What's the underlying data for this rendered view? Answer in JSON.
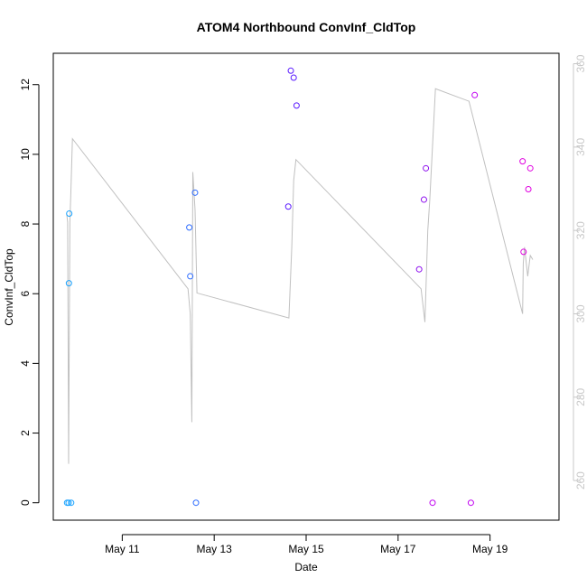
{
  "chart_data": {
    "type": "scatter",
    "title": "ATOM4 Northbound ConvInf_CldTop",
    "xlabel": "Date",
    "ylabel": "ConvInf_CldTop",
    "xlim": [
      "2024-05-09T12:00",
      "2024-05-20T12:00"
    ],
    "ylim": [
      -0.5,
      12.9
    ],
    "y_right_lim": [
      250.5,
      362.5
    ],
    "x_ticks": [
      {
        "date": "2024-05-11",
        "label": "May 11"
      },
      {
        "date": "2024-05-13",
        "label": "May 13"
      },
      {
        "date": "2024-05-15",
        "label": "May 15"
      },
      {
        "date": "2024-05-17",
        "label": "May 17"
      },
      {
        "date": "2024-05-19",
        "label": "May 19"
      }
    ],
    "y_ticks": [
      0,
      2,
      4,
      6,
      8,
      10,
      12
    ],
    "y_right_ticks": [
      260,
      280,
      300,
      320,
      340,
      360
    ],
    "grid": false,
    "series": [
      {
        "kind": "points",
        "points": [
          {
            "x": "2024-05-09T19:12",
            "y": 0.0,
            "color": "#1aa3ff"
          },
          {
            "x": "2024-05-09T20:00",
            "y": 0.0,
            "color": "#1aa3ff"
          },
          {
            "x": "2024-05-09T20:10",
            "y": 6.3,
            "color": "#1aa3ff"
          },
          {
            "x": "2024-05-09T20:20",
            "y": 8.3,
            "color": "#1aa3ff"
          },
          {
            "x": "2024-05-09T21:20",
            "y": 0.0,
            "color": "#1aa3ff"
          },
          {
            "x": "2024-05-12T11:00",
            "y": 7.9,
            "color": "#2a6aff"
          },
          {
            "x": "2024-05-12T11:30",
            "y": 6.5,
            "color": "#2a6aff"
          },
          {
            "x": "2024-05-12T14:00",
            "y": 8.9,
            "color": "#2a6aff"
          },
          {
            "x": "2024-05-12T14:30",
            "y": 0.0,
            "color": "#2a6aff"
          },
          {
            "x": "2024-05-14T14:40",
            "y": 8.5,
            "color": "#5a1aff"
          },
          {
            "x": "2024-05-14T16:00",
            "y": 12.4,
            "color": "#5a1aff"
          },
          {
            "x": "2024-05-14T17:30",
            "y": 12.2,
            "color": "#5a1aff"
          },
          {
            "x": "2024-05-14T19:00",
            "y": 11.4,
            "color": "#5a1aff"
          },
          {
            "x": "2024-05-17T11:00",
            "y": 6.7,
            "color": "#8e10ee"
          },
          {
            "x": "2024-05-17T13:30",
            "y": 8.7,
            "color": "#8e10ee"
          },
          {
            "x": "2024-05-17T14:30",
            "y": 9.6,
            "color": "#8e10ee"
          },
          {
            "x": "2024-05-17T18:00",
            "y": 0.0,
            "color": "#c000f0"
          },
          {
            "x": "2024-05-18T14:00",
            "y": 0.0,
            "color": "#c000f0"
          },
          {
            "x": "2024-05-18T16:00",
            "y": 11.7,
            "color": "#c000f0"
          },
          {
            "x": "2024-05-19T17:00",
            "y": 9.8,
            "color": "#e000e0"
          },
          {
            "x": "2024-05-19T17:30",
            "y": 7.2,
            "color": "#e000e0"
          },
          {
            "x": "2024-05-19T20:00",
            "y": 9.0,
            "color": "#e000e0"
          },
          {
            "x": "2024-05-19T21:00",
            "y": 9.6,
            "color": "#e000e0"
          }
        ]
      },
      {
        "kind": "line",
        "axis": "right",
        "color": "#c0c0c0",
        "points": [
          {
            "x": "2024-05-09T19:00",
            "y": 324
          },
          {
            "x": "2024-05-09T19:30",
            "y": 322
          },
          {
            "x": "2024-05-09T20:00",
            "y": 264
          },
          {
            "x": "2024-05-09T20:40",
            "y": 322
          },
          {
            "x": "2024-05-09T21:10",
            "y": 329
          },
          {
            "x": "2024-05-09T22:00",
            "y": 342
          },
          {
            "x": "2024-05-12T10:20",
            "y": 306
          },
          {
            "x": "2024-05-12T11:30",
            "y": 300
          },
          {
            "x": "2024-05-12T12:20",
            "y": 274
          },
          {
            "x": "2024-05-12T12:50",
            "y": 334
          },
          {
            "x": "2024-05-12T14:00",
            "y": 325
          },
          {
            "x": "2024-05-12T15:00",
            "y": 305
          },
          {
            "x": "2024-05-14T15:00",
            "y": 299
          },
          {
            "x": "2024-05-14T16:30",
            "y": 316
          },
          {
            "x": "2024-05-14T17:30",
            "y": 332
          },
          {
            "x": "2024-05-14T18:40",
            "y": 337
          },
          {
            "x": "2024-05-17T12:00",
            "y": 306
          },
          {
            "x": "2024-05-17T14:00",
            "y": 298
          },
          {
            "x": "2024-05-17T15:30",
            "y": 320
          },
          {
            "x": "2024-05-17T16:30",
            "y": 327
          },
          {
            "x": "2024-05-17T19:30",
            "y": 354
          },
          {
            "x": "2024-05-18T13:00",
            "y": 351
          },
          {
            "x": "2024-05-19T17:00",
            "y": 300
          },
          {
            "x": "2024-05-19T17:20",
            "y": 312
          },
          {
            "x": "2024-05-19T18:00",
            "y": 316
          },
          {
            "x": "2024-05-19T19:40",
            "y": 309
          },
          {
            "x": "2024-05-19T21:00",
            "y": 314
          },
          {
            "x": "2024-05-19T22:20",
            "y": 313
          }
        ]
      }
    ]
  }
}
